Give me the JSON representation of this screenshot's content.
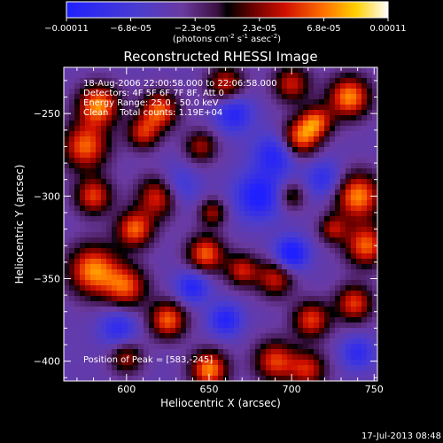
{
  "chart_data": {
    "type": "heatmap",
    "title": "Reconstructed RHESSI Image",
    "xlabel": "Heliocentric X (arcsec)",
    "ylabel": "Heliocentric Y (arcsec)",
    "xlim": [
      562,
      752
    ],
    "ylim": [
      -412,
      -222
    ],
    "x_ticks": [
      600,
      650,
      700,
      750
    ],
    "y_ticks": [
      -250,
      -300,
      -350,
      -400
    ],
    "colorbar": {
      "range": [
        -0.00011,
        0.00011
      ],
      "tick_labels": [
        "-0.00011",
        "-6.8e-05",
        "-2.3e-05",
        "2.3e-05",
        "6.8e-05",
        "0.00011"
      ],
      "units_text": "(photons cm",
      "units_exp1": "-2",
      "units_mid": " s",
      "units_exp2": "-1",
      "units_end": " asec",
      "units_exp3": "-2",
      "units_close": ")"
    },
    "annotations": {
      "line1": "18-Aug-2006 22:00:58.000 to 22:06:58.000",
      "line2": "Detectors: 4F 5F 6F 7F 8F, Att 0",
      "line3": "Energy Range: 25.0 - 50.0 keV",
      "line4": "Clean    Total counts: 1.19E+04",
      "peak": "Position of Peak = [583,-245]"
    },
    "blobs": [
      {
        "x": 583,
        "y": -245,
        "a": 1.0,
        "s": 9
      },
      {
        "x": 575,
        "y": -270,
        "a": 0.9,
        "s": 10
      },
      {
        "x": 580,
        "y": -300,
        "a": 0.8,
        "s": 8
      },
      {
        "x": 620,
        "y": -300,
        "a": 0.9,
        "s": 9
      },
      {
        "x": 605,
        "y": -320,
        "a": 0.9,
        "s": 8
      },
      {
        "x": 580,
        "y": -345,
        "a": 1.0,
        "s": 11
      },
      {
        "x": 600,
        "y": -355,
        "a": 0.8,
        "s": 9
      },
      {
        "x": 620,
        "y": -248,
        "a": 0.9,
        "s": 8
      },
      {
        "x": 610,
        "y": -262,
        "a": 0.7,
        "s": 7
      },
      {
        "x": 645,
        "y": -270,
        "a": 0.6,
        "s": 7
      },
      {
        "x": 660,
        "y": -232,
        "a": 0.7,
        "s": 8
      },
      {
        "x": 700,
        "y": -232,
        "a": 0.7,
        "s": 8
      },
      {
        "x": 705,
        "y": -265,
        "a": 0.9,
        "s": 8
      },
      {
        "x": 715,
        "y": -255,
        "a": 0.8,
        "s": 7
      },
      {
        "x": 735,
        "y": -240,
        "a": 1.0,
        "s": 9
      },
      {
        "x": 740,
        "y": -300,
        "a": 1.0,
        "s": 10
      },
      {
        "x": 745,
        "y": -330,
        "a": 0.9,
        "s": 9
      },
      {
        "x": 738,
        "y": -365,
        "a": 0.8,
        "s": 8
      },
      {
        "x": 712,
        "y": -375,
        "a": 0.8,
        "s": 8
      },
      {
        "x": 690,
        "y": -350,
        "a": 0.7,
        "s": 8
      },
      {
        "x": 648,
        "y": -335,
        "a": 0.9,
        "s": 8
      },
      {
        "x": 670,
        "y": -345,
        "a": 0.7,
        "s": 7
      },
      {
        "x": 625,
        "y": -375,
        "a": 0.9,
        "s": 8
      },
      {
        "x": 650,
        "y": -405,
        "a": 1.0,
        "s": 8
      },
      {
        "x": 690,
        "y": -400,
        "a": 0.8,
        "s": 9
      },
      {
        "x": 710,
        "y": -405,
        "a": 0.7,
        "s": 8
      },
      {
        "x": 600,
        "y": -398,
        "a": 0.6,
        "s": 7
      },
      {
        "x": 652,
        "y": -310,
        "a": 0.6,
        "s": 6
      },
      {
        "x": 700,
        "y": -300,
        "a": 0.5,
        "s": 6
      },
      {
        "x": 725,
        "y": -320,
        "a": 0.6,
        "s": 6
      },
      {
        "x": 660,
        "y": -375,
        "a": -0.6,
        "s": 7
      },
      {
        "x": 630,
        "y": -295,
        "a": -0.5,
        "s": 9
      },
      {
        "x": 680,
        "y": -300,
        "a": -0.7,
        "s": 10
      },
      {
        "x": 690,
        "y": -275,
        "a": -0.6,
        "s": 9
      },
      {
        "x": 665,
        "y": -250,
        "a": -0.6,
        "s": 8
      },
      {
        "x": 640,
        "y": -355,
        "a": -0.6,
        "s": 7
      },
      {
        "x": 700,
        "y": -335,
        "a": -0.8,
        "s": 7
      },
      {
        "x": 720,
        "y": -290,
        "a": -0.5,
        "s": 8
      },
      {
        "x": 595,
        "y": -380,
        "a": -0.5,
        "s": 8
      },
      {
        "x": 740,
        "y": -395,
        "a": -0.5,
        "s": 7
      }
    ]
  },
  "footer": {
    "timestamp": "17-Jul-2013 08:48"
  }
}
